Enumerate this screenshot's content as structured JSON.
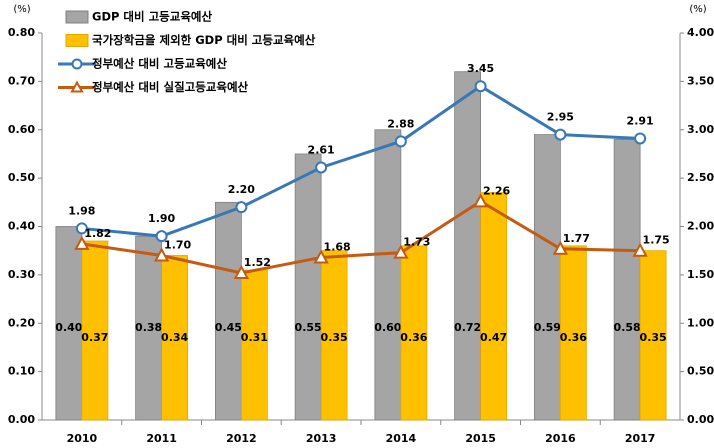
{
  "chart_data": {
    "type": "combo",
    "categories": [
      "2010",
      "2011",
      "2012",
      "2013",
      "2014",
      "2015",
      "2016",
      "2017"
    ],
    "y_unit": "(%)",
    "y2_unit": "(%)",
    "ylim": [
      0,
      0.8
    ],
    "yticks": [
      {
        "value": 0,
        "label": "0.00"
      },
      {
        "value": 0.1,
        "label": "0.10"
      },
      {
        "value": 0.2,
        "label": "0.20"
      },
      {
        "value": 0.3,
        "label": "0.30"
      },
      {
        "value": 0.4,
        "label": "0.40"
      },
      {
        "value": 0.5,
        "label": "0.50"
      },
      {
        "value": 0.6,
        "label": "0.60"
      },
      {
        "value": 0.7,
        "label": "0.70"
      },
      {
        "value": 0.8,
        "label": "0.80"
      }
    ],
    "y2lim": [
      0,
      4
    ],
    "y2ticks": [
      {
        "value": 0,
        "label": "0.00"
      },
      {
        "value": 0.5,
        "label": "0.50"
      },
      {
        "value": 1,
        "label": "1.00"
      },
      {
        "value": 1.5,
        "label": "1.50"
      },
      {
        "value": 2,
        "label": "2.00"
      },
      {
        "value": 2.5,
        "label": "2.50"
      },
      {
        "value": 3,
        "label": "3.00"
      },
      {
        "value": 3.5,
        "label": "3.50"
      },
      {
        "value": 4,
        "label": "4.00"
      }
    ],
    "legend": "top-left",
    "series": [
      {
        "name": "GDP 대비 고등교육예산",
        "type": "bar",
        "color": "#a5a5a5",
        "values": [
          0.4,
          0.38,
          0.45,
          0.55,
          0.6,
          0.72,
          0.59,
          0.58
        ],
        "value_labels": [
          "0.40",
          "0.38",
          "0.45",
          "0.55",
          "0.60",
          "0.72",
          "0.59",
          "0.58"
        ]
      },
      {
        "name": "국가장학금을 제외한 GDP 대비 고등교육예산",
        "type": "bar",
        "color": "#ffc000",
        "values": [
          0.37,
          0.34,
          0.31,
          0.35,
          0.36,
          0.47,
          0.36,
          0.35
        ],
        "value_labels": [
          "0.37",
          "0.34",
          "0.31",
          "0.35",
          "0.36",
          "0.47",
          "0.36",
          "0.35"
        ]
      },
      {
        "name": "정부예산 대비 고등교육예산",
        "type": "line",
        "axis": "y2",
        "marker": "circle",
        "color": "#3a78b5",
        "values": [
          1.98,
          1.9,
          2.2,
          2.61,
          2.88,
          3.45,
          2.95,
          2.91
        ],
        "value_labels": [
          "1.98",
          "1.90",
          "2.20",
          "2.61",
          "2.88",
          "3.45",
          "2.95",
          "2.91"
        ]
      },
      {
        "name": "정부예산 대비 실질고등교육예산",
        "type": "line",
        "axis": "y2",
        "marker": "triangle",
        "color": "#c55a11",
        "values": [
          1.82,
          1.7,
          1.52,
          1.68,
          1.73,
          2.26,
          1.77,
          1.75
        ],
        "value_labels": [
          "1.82",
          "1.70",
          "1.52",
          "1.68",
          "1.73",
          "2.26",
          "1.77",
          "1.75"
        ]
      }
    ]
  }
}
